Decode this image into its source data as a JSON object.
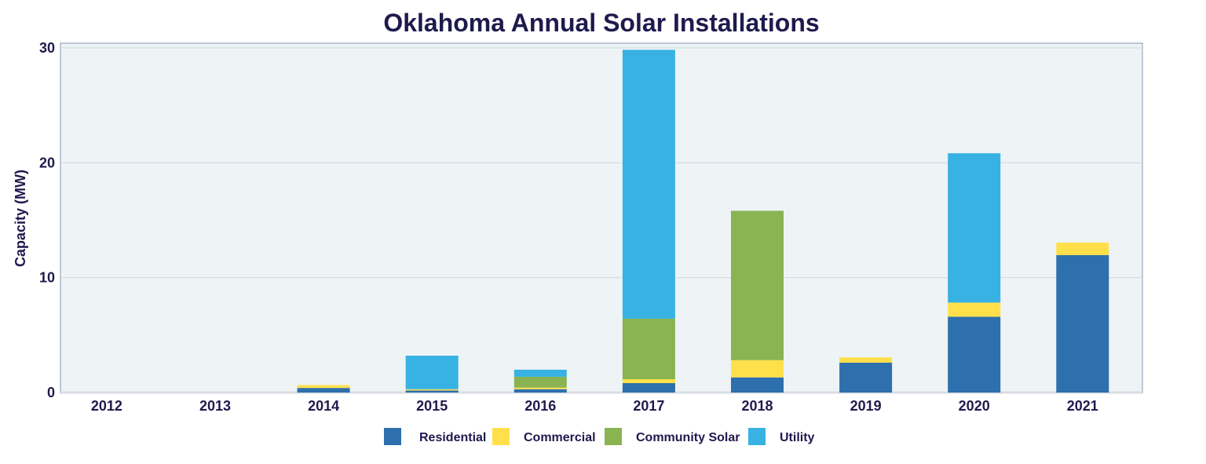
{
  "chart_data": {
    "type": "bar",
    "stacked": true,
    "title": "Oklahoma Annual Solar Installations",
    "xlabel": "",
    "ylabel": "Capacity (MW)",
    "ylim": [
      0,
      30
    ],
    "yticks": [
      0,
      10,
      20,
      30
    ],
    "grid": true,
    "legend": "bottom",
    "categories": [
      "2012",
      "2013",
      "2014",
      "2015",
      "2016",
      "2017",
      "2018",
      "2019",
      "2020",
      "2021"
    ],
    "series": [
      {
        "name": "Residential",
        "color": "#2e6fad",
        "values": [
          0,
          0,
          0.4,
          0.18,
          0.29,
          0.82,
          1.32,
          2.6,
          6.6,
          11.96
        ]
      },
      {
        "name": "Commercial",
        "color": "#ffe04b",
        "values": [
          0,
          0,
          0.25,
          0.11,
          0.14,
          0.34,
          1.5,
          0.46,
          1.23,
          1.09
        ]
      },
      {
        "name": "Community Solar",
        "color": "#8ab351",
        "values": [
          0,
          0,
          0,
          0,
          0.94,
          5.27,
          13.0,
          0,
          0,
          0
        ]
      },
      {
        "name": "Utility",
        "color": "#38b2e3",
        "values": [
          0,
          0,
          0,
          2.92,
          0.62,
          23.4,
          0,
          0,
          13.0,
          0
        ]
      }
    ]
  }
}
